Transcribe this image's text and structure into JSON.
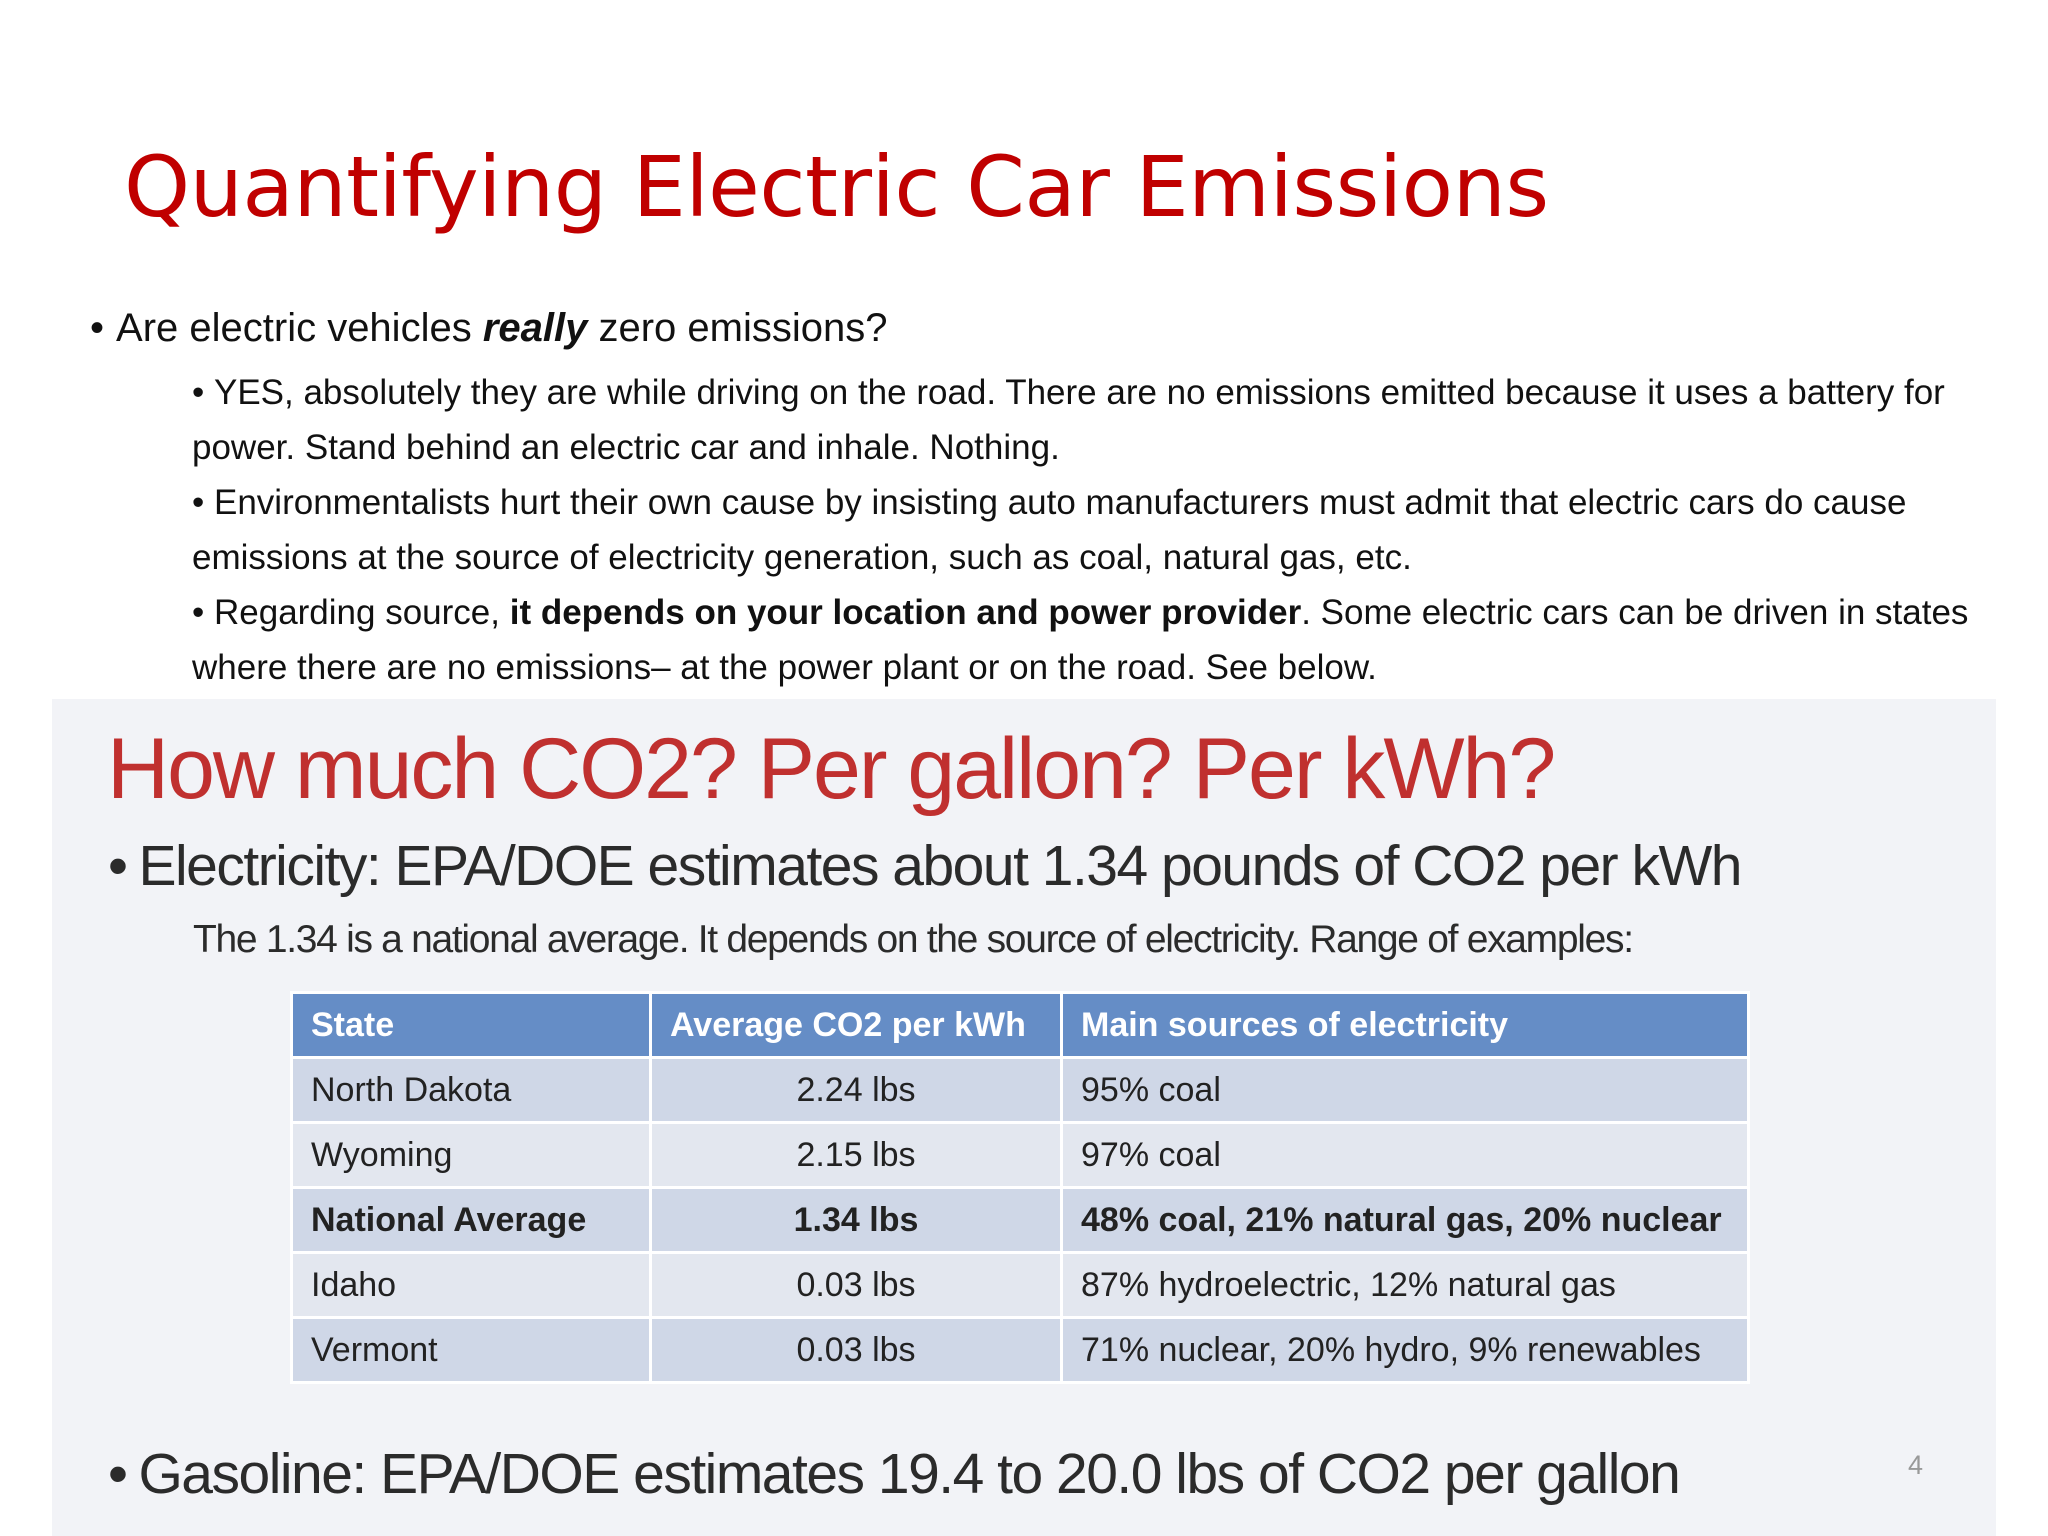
{
  "slide": {
    "title": "Quantifying Electric Car Emissions",
    "page_number": "4"
  },
  "bullets": {
    "main": [
      "Are electric vehicles ",
      "really",
      " zero emissions?"
    ],
    "sub": [
      [
        "YES, absolutely they are while driving on the road. There are no emissions emitted because it uses a battery for power. Stand behind an electric car and inhale. Nothing."
      ],
      [
        "Environmentalists hurt their own cause by insisting auto manufacturers must admit that electric cars do cause emissions at the source of electricity generation, such as coal, natural gas, etc."
      ],
      [
        "Regarding source, ",
        "it depends on your location and power provider",
        ". Some electric cars can be driven in states where there are no emissions– at the power plant or on the road. See below."
      ]
    ]
  },
  "inner_slide": {
    "title": "How much CO2? Per gallon? Per kWh?",
    "electricity": "Electricity: EPA/DOE estimates about 1.34 pounds of CO2 per kWh",
    "note": "The 1.34 is a national average. It depends on the source of electricity. Range of examples:",
    "table": {
      "header": [
        "State",
        "Average CO2 per kWh",
        "Main sources of electricity"
      ],
      "rows": [
        [
          "North Dakota",
          "2.24 lbs",
          "95% coal"
        ],
        [
          "Wyoming",
          "2.15 lbs",
          "97% coal"
        ],
        [
          "National Average",
          "1.34 lbs",
          "48% coal, 21% natural gas, 20% nuclear"
        ],
        [
          "Idaho",
          "0.03 lbs",
          "87% hydroelectric, 12% natural gas"
        ],
        [
          "Vermont",
          "0.03 lbs",
          "71% nuclear, 20% hydro, 9% renewables"
        ]
      ]
    },
    "gasoline": "Gasoline: EPA/DOE estimates 19.4 to 20.0 lbs of CO2 per gallon"
  }
}
